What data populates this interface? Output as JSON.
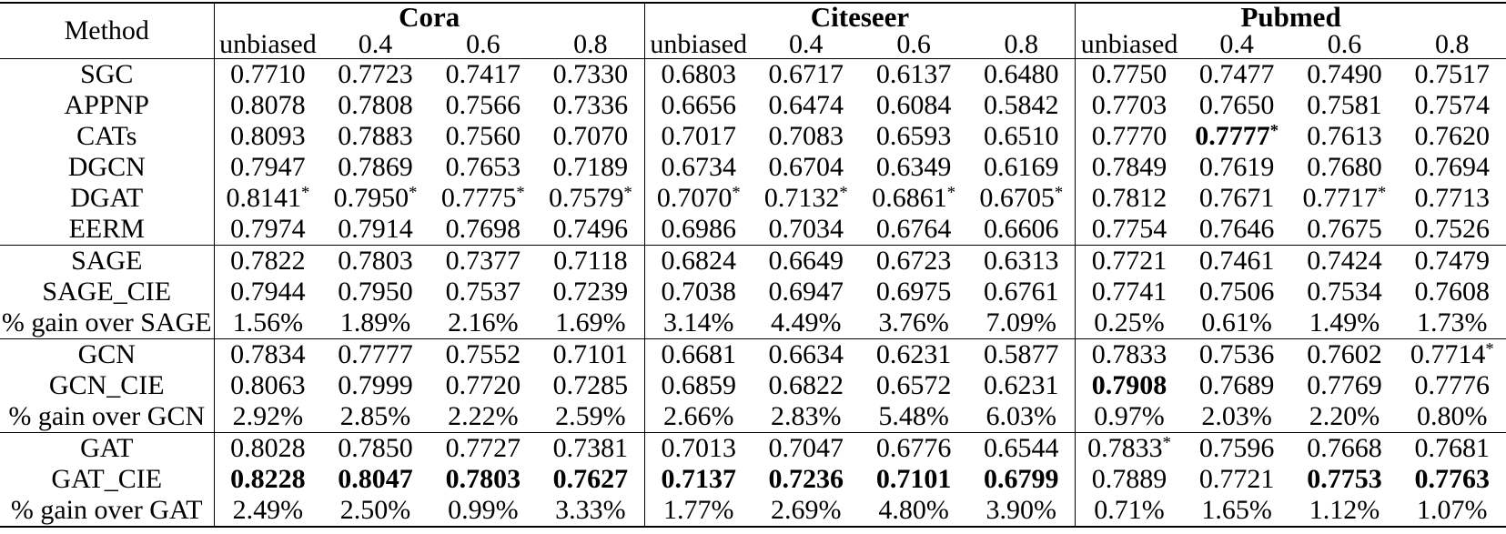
{
  "table": {
    "method_header": "Method",
    "datasets": [
      "Cora",
      "Citeseer",
      "Pubmed"
    ],
    "sub_columns": [
      "unbiased",
      "0.4",
      "0.6",
      "0.8"
    ],
    "groups": [
      {
        "rows": [
          {
            "method": "SGC",
            "cells": [
              "0.7710",
              "0.7723",
              "0.7417",
              "0.7330",
              "0.6803",
              "0.6717",
              "0.6137",
              "0.6480",
              "0.7750",
              "0.7477",
              "0.7490",
              "0.7517"
            ]
          },
          {
            "method": "APPNP",
            "cells": [
              "0.8078",
              "0.7808",
              "0.7566",
              "0.7336",
              "0.6656",
              "0.6474",
              "0.6084",
              "0.5842",
              "0.7703",
              "0.7650",
              "0.7581",
              "0.7574"
            ]
          },
          {
            "method": "CATs",
            "cells": [
              "0.8093",
              "0.7883",
              "0.7560",
              "0.7070",
              "0.7017",
              "0.7083",
              "0.6593",
              "0.6510",
              "0.7770",
              {
                "v": "0.7777",
                "bold": true,
                "star": true
              },
              "0.7613",
              "0.7620"
            ]
          },
          {
            "method": "DGCN",
            "cells": [
              "0.7947",
              "0.7869",
              "0.7653",
              "0.7189",
              "0.6734",
              "0.6704",
              "0.6349",
              "0.6169",
              "0.7849",
              "0.7619",
              "0.7680",
              "0.7694"
            ]
          },
          {
            "method": "DGAT",
            "cells": [
              {
                "v": "0.8141",
                "star": true
              },
              {
                "v": "0.7950",
                "star": true
              },
              {
                "v": "0.7775",
                "star": true
              },
              {
                "v": "0.7579",
                "star": true
              },
              {
                "v": "0.7070",
                "star": true
              },
              {
                "v": "0.7132",
                "star": true
              },
              {
                "v": "0.6861",
                "star": true
              },
              {
                "v": "0.6705",
                "star": true
              },
              "0.7812",
              "0.7671",
              {
                "v": "0.7717",
                "star": true
              },
              "0.7713"
            ]
          },
          {
            "method": "EERM",
            "cells": [
              "0.7974",
              "0.7914",
              "0.7698",
              "0.7496",
              "0.6986",
              "0.7034",
              "0.6764",
              "0.6606",
              "0.7754",
              "0.7646",
              "0.7675",
              "0.7526"
            ]
          }
        ]
      },
      {
        "rows": [
          {
            "method": "SAGE",
            "cells": [
              "0.7822",
              "0.7803",
              "0.7377",
              "0.7118",
              "0.6824",
              "0.6649",
              "0.6723",
              "0.6313",
              "0.7721",
              "0.7461",
              "0.7424",
              "0.7479"
            ]
          },
          {
            "method": "SAGE_CIE",
            "cells": [
              "0.7944",
              "0.7950",
              "0.7537",
              "0.7239",
              "0.7038",
              "0.6947",
              "0.6975",
              "0.6761",
              "0.7741",
              "0.7506",
              "0.7534",
              "0.7608"
            ]
          },
          {
            "method": "% gain over SAGE",
            "cells": [
              "1.56%",
              "1.89%",
              "2.16%",
              "1.69%",
              "3.14%",
              "4.49%",
              "3.76%",
              "7.09%",
              "0.25%",
              "0.61%",
              "1.49%",
              "1.73%"
            ]
          }
        ]
      },
      {
        "rows": [
          {
            "method": "GCN",
            "cells": [
              "0.7834",
              "0.7777",
              "0.7552",
              "0.7101",
              "0.6681",
              "0.6634",
              "0.6231",
              "0.5877",
              "0.7833",
              "0.7536",
              "0.7602",
              {
                "v": "0.7714",
                "star": true
              }
            ]
          },
          {
            "method": "GCN_CIE",
            "cells": [
              "0.8063",
              "0.7999",
              "0.7720",
              "0.7285",
              "0.6859",
              "0.6822",
              "0.6572",
              "0.6231",
              {
                "v": "0.7908",
                "bold": true
              },
              "0.7689",
              "0.7769",
              "0.7776"
            ]
          },
          {
            "method": "% gain over GCN",
            "cells": [
              "2.92%",
              "2.85%",
              "2.22%",
              "2.59%",
              "2.66%",
              "2.83%",
              "5.48%",
              "6.03%",
              "0.97%",
              "2.03%",
              "2.20%",
              "0.80%"
            ]
          }
        ]
      },
      {
        "rows": [
          {
            "method": "GAT",
            "cells": [
              "0.8028",
              "0.7850",
              "0.7727",
              "0.7381",
              "0.7013",
              "0.7047",
              "0.6776",
              "0.6544",
              {
                "v": "0.7833",
                "star": true
              },
              "0.7596",
              "0.7668",
              "0.7681"
            ]
          },
          {
            "method": "GAT_CIE",
            "cells": [
              {
                "v": "0.8228",
                "bold": true
              },
              {
                "v": "0.8047",
                "bold": true
              },
              {
                "v": "0.7803",
                "bold": true
              },
              {
                "v": "0.7627",
                "bold": true
              },
              {
                "v": "0.7137",
                "bold": true
              },
              {
                "v": "0.7236",
                "bold": true
              },
              {
                "v": "0.7101",
                "bold": true
              },
              {
                "v": "0.6799",
                "bold": true
              },
              "0.7889",
              "0.7721",
              {
                "v": "0.7753",
                "bold": true
              },
              {
                "v": "0.7763",
                "bold": true
              }
            ]
          },
          {
            "method": "% gain over GAT",
            "cells": [
              "2.49%",
              "2.50%",
              "0.99%",
              "3.33%",
              "1.77%",
              "2.69%",
              "4.80%",
              "3.90%",
              "0.71%",
              "1.65%",
              "1.12%",
              "1.07%"
            ]
          }
        ]
      }
    ]
  }
}
